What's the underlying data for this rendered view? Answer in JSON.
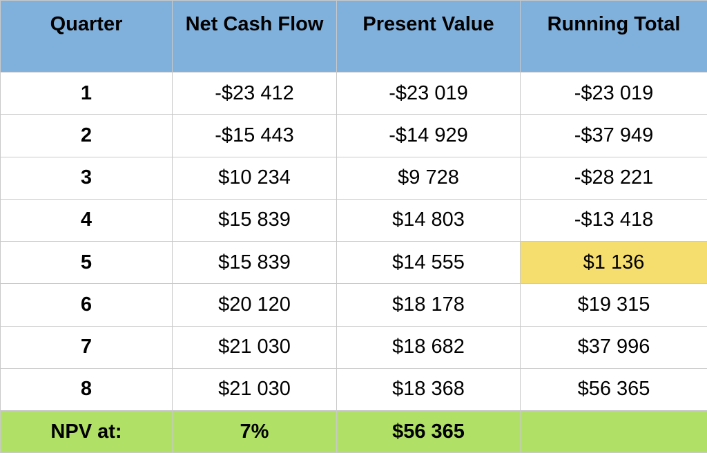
{
  "headers": [
    "Quarter",
    "Net Cash Flow",
    "Present Value",
    "Running Total"
  ],
  "rows": [
    {
      "quarter": "1",
      "net_cash_flow": "-$23 412",
      "present_value": "-$23 019",
      "running_total": "-$23 019"
    },
    {
      "quarter": "2",
      "net_cash_flow": "-$15 443",
      "present_value": "-$14 929",
      "running_total": "-$37 949"
    },
    {
      "quarter": "3",
      "net_cash_flow": "$10 234",
      "present_value": "$9 728",
      "running_total": "-$28 221"
    },
    {
      "quarter": "4",
      "net_cash_flow": "$15 839",
      "present_value": "$14 803",
      "running_total": "-$13 418"
    },
    {
      "quarter": "5",
      "net_cash_flow": "$15 839",
      "present_value": "$14 555",
      "running_total": "$1 136"
    },
    {
      "quarter": "6",
      "net_cash_flow": "$20 120",
      "present_value": "$18 178",
      "running_total": "$19 315"
    },
    {
      "quarter": "7",
      "net_cash_flow": "$21 030",
      "present_value": "$18 682",
      "running_total": "$37 996"
    },
    {
      "quarter": "8",
      "net_cash_flow": "$21 030",
      "present_value": "$18 368",
      "running_total": "$56 365"
    }
  ],
  "highlight_row_index": 4,
  "footer": {
    "label": "NPV at:",
    "rate": "7%",
    "npv": "$56 365",
    "empty": ""
  },
  "colors": {
    "header_bg": "#80b1dd",
    "footer_bg": "#b0e066",
    "highlight_bg": "#f5dd6e",
    "border": "#c9c9c9"
  }
}
